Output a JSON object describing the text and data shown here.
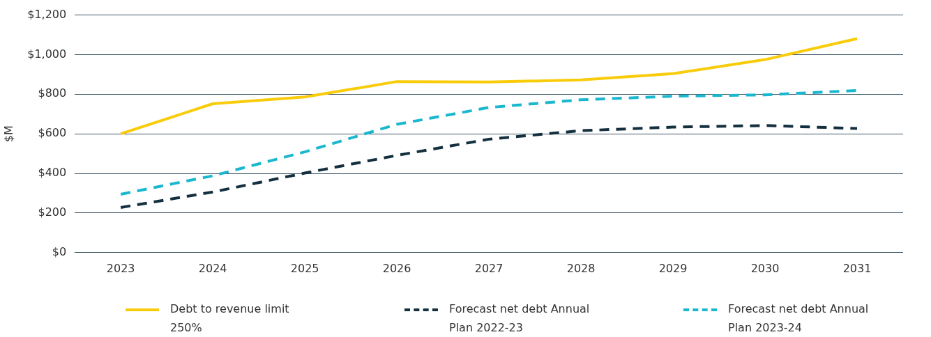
{
  "chart_data": {
    "type": "line",
    "ylabel": "$M",
    "categories": [
      "2023",
      "2024",
      "2025",
      "2026",
      "2027",
      "2028",
      "2029",
      "2030",
      "2031"
    ],
    "series": [
      {
        "name": "Debt to revenue limit 250%",
        "color": "#f9cc0b",
        "line_style": "solid",
        "values": [
          600,
          752,
          786,
          864,
          862,
          872,
          904,
          975,
          1081
        ]
      },
      {
        "name": "Forecast net debt Annual Plan 2022-23",
        "color": "#14303f",
        "line_style": "dashed",
        "values": [
          228,
          306,
          402,
          491,
          573,
          616,
          634,
          642,
          627
        ]
      },
      {
        "name": "Forecast net debt Annual Plan 2023-24",
        "color": "#1ab7cf",
        "line_style": "dashed",
        "values": [
          295,
          388,
          509,
          648,
          733,
          772,
          790,
          797,
          819
        ]
      }
    ],
    "ylim": [
      0,
      1200
    ],
    "yticks": [
      {
        "value": 0,
        "label": "$0"
      },
      {
        "value": 200,
        "label": "$200"
      },
      {
        "value": 400,
        "label": "$400"
      },
      {
        "value": 600,
        "label": "$600"
      },
      {
        "value": 800,
        "label": "$800"
      },
      {
        "value": 1000,
        "label": "$1,000"
      },
      {
        "value": 1200,
        "label": "$1,200"
      }
    ],
    "grid": "y",
    "legend": "bottom",
    "marker": "none"
  }
}
